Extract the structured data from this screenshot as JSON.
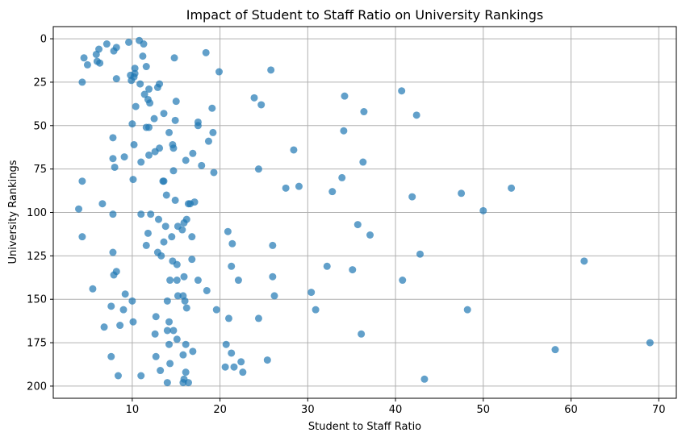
{
  "chart_data": {
    "type": "scatter",
    "title": "Impact of Student to Staff Ratio on University Rankings",
    "xlabel": "Student to Staff Ratio",
    "ylabel": "University Rankings",
    "xlim": [
      1,
      72
    ],
    "ylim": [
      207,
      -7
    ],
    "y_inverted": true,
    "grid": true,
    "x_ticks": [
      10,
      20,
      30,
      40,
      50,
      60,
      70
    ],
    "y_ticks": [
      0,
      25,
      50,
      75,
      100,
      125,
      150,
      175,
      200
    ],
    "color": "#1f77b4",
    "series": [
      {
        "points": [
          [
            10.8,
            1
          ],
          [
            9.6,
            2
          ],
          [
            7.1,
            3
          ],
          [
            11.3,
            3
          ],
          [
            8.2,
            5
          ],
          [
            6.2,
            6
          ],
          [
            7.9,
            7
          ],
          [
            18.4,
            8
          ],
          [
            5.9,
            9
          ],
          [
            11.2,
            10
          ],
          [
            4.5,
            11
          ],
          [
            14.8,
            11
          ],
          [
            6,
            13
          ],
          [
            6.3,
            14
          ],
          [
            4.9,
            15
          ],
          [
            11.6,
            16
          ],
          [
            10.3,
            17
          ],
          [
            25.8,
            18
          ],
          [
            19.9,
            19
          ],
          [
            10.3,
            20
          ],
          [
            9.8,
            21
          ],
          [
            10.2,
            22
          ],
          [
            8.2,
            23
          ],
          [
            9.9,
            24
          ],
          [
            4.3,
            25
          ],
          [
            10.9,
            26
          ],
          [
            13.1,
            26
          ],
          [
            12.9,
            28
          ],
          [
            11.9,
            29
          ],
          [
            40.7,
            30
          ],
          [
            11.4,
            32
          ],
          [
            34.2,
            33
          ],
          [
            23.9,
            34
          ],
          [
            11.8,
            35
          ],
          [
            12,
            37
          ],
          [
            15,
            36
          ],
          [
            24.7,
            38
          ],
          [
            10.4,
            39
          ],
          [
            19.1,
            40
          ],
          [
            36.4,
            42
          ],
          [
            13.6,
            43
          ],
          [
            42.4,
            44
          ],
          [
            12.5,
            46
          ],
          [
            14.9,
            47
          ],
          [
            17.5,
            48
          ],
          [
            17.5,
            50
          ],
          [
            10,
            49
          ],
          [
            11.6,
            51
          ],
          [
            11.9,
            51
          ],
          [
            34.1,
            53
          ],
          [
            14.2,
            54
          ],
          [
            19.2,
            54
          ],
          [
            7.8,
            57
          ],
          [
            18.7,
            59
          ],
          [
            14.6,
            61
          ],
          [
            10.2,
            61
          ],
          [
            13.1,
            63
          ],
          [
            14.7,
            63
          ],
          [
            28.4,
            64
          ],
          [
            12.6,
            65
          ],
          [
            16.9,
            66
          ],
          [
            11.9,
            67
          ],
          [
            9.1,
            68
          ],
          [
            7.8,
            69
          ],
          [
            16.1,
            70
          ],
          [
            11,
            71
          ],
          [
            36.3,
            71
          ],
          [
            17.9,
            73
          ],
          [
            8,
            74
          ],
          [
            24.4,
            75
          ],
          [
            14.7,
            76
          ],
          [
            19.3,
            77
          ],
          [
            33.9,
            80
          ],
          [
            10.1,
            81
          ],
          [
            4.3,
            82
          ],
          [
            13.5,
            82
          ],
          [
            13.6,
            82
          ],
          [
            27.5,
            86
          ],
          [
            29,
            85
          ],
          [
            53.2,
            86
          ],
          [
            32.8,
            88
          ],
          [
            47.5,
            89
          ],
          [
            13.9,
            90
          ],
          [
            41.9,
            91
          ],
          [
            14.9,
            93
          ],
          [
            16.4,
            95
          ],
          [
            17.1,
            94
          ],
          [
            16.6,
            95
          ],
          [
            6.6,
            95
          ],
          [
            3.9,
            98
          ],
          [
            50,
            99
          ],
          [
            7.8,
            101
          ],
          [
            11,
            101
          ],
          [
            12.1,
            101
          ],
          [
            13,
            104
          ],
          [
            16.2,
            104
          ],
          [
            15.9,
            106
          ],
          [
            35.7,
            107
          ],
          [
            15.2,
            108
          ],
          [
            13.8,
            108
          ],
          [
            15.7,
            110
          ],
          [
            20.9,
            111
          ],
          [
            11.8,
            112
          ],
          [
            37.1,
            113
          ],
          [
            4.3,
            114
          ],
          [
            16.8,
            114
          ],
          [
            14.5,
            114
          ],
          [
            13.6,
            117
          ],
          [
            21.4,
            118
          ],
          [
            11.6,
            119
          ],
          [
            26,
            119
          ],
          [
            7.8,
            123
          ],
          [
            12.9,
            123
          ],
          [
            13.3,
            125
          ],
          [
            42.8,
            124
          ],
          [
            14.6,
            128
          ],
          [
            16.8,
            127
          ],
          [
            61.5,
            128
          ],
          [
            15.1,
            130
          ],
          [
            21.3,
            131
          ],
          [
            32.2,
            131
          ],
          [
            35.1,
            133
          ],
          [
            8.2,
            134
          ],
          [
            7.9,
            136
          ],
          [
            26,
            137
          ],
          [
            15.9,
            137
          ],
          [
            14.3,
            139
          ],
          [
            15.1,
            139
          ],
          [
            17.5,
            139
          ],
          [
            22.1,
            139
          ],
          [
            40.8,
            139
          ],
          [
            5.5,
            144
          ],
          [
            18.5,
            145
          ],
          [
            30.4,
            146
          ],
          [
            9.2,
            147
          ],
          [
            26.2,
            148
          ],
          [
            15.2,
            148
          ],
          [
            15.8,
            148
          ],
          [
            16,
            151
          ],
          [
            10,
            151
          ],
          [
            14,
            151
          ],
          [
            7.6,
            154
          ],
          [
            9,
            156
          ],
          [
            19.6,
            156
          ],
          [
            30.9,
            156
          ],
          [
            48.2,
            156
          ],
          [
            16.2,
            155
          ],
          [
            12.7,
            160
          ],
          [
            24.4,
            161
          ],
          [
            21,
            161
          ],
          [
            14.2,
            163
          ],
          [
            10.1,
            163
          ],
          [
            8.6,
            165
          ],
          [
            6.8,
            166
          ],
          [
            14,
            168
          ],
          [
            14.7,
            168
          ],
          [
            36.1,
            170
          ],
          [
            12.6,
            170
          ],
          [
            15.1,
            173
          ],
          [
            16.1,
            176
          ],
          [
            14.2,
            176
          ],
          [
            69,
            175
          ],
          [
            20.7,
            176
          ],
          [
            58.2,
            179
          ],
          [
            16.9,
            180
          ],
          [
            21.3,
            181
          ],
          [
            15.8,
            182
          ],
          [
            12.7,
            183
          ],
          [
            7.6,
            183
          ],
          [
            25.4,
            185
          ],
          [
            22.4,
            186
          ],
          [
            14.3,
            187
          ],
          [
            20.6,
            189
          ],
          [
            21.6,
            189
          ],
          [
            13.2,
            191
          ],
          [
            16.1,
            192
          ],
          [
            22.6,
            192
          ],
          [
            8.4,
            194
          ],
          [
            11,
            194
          ],
          [
            15.9,
            196
          ],
          [
            43.3,
            196
          ],
          [
            15.8,
            198
          ],
          [
            16.4,
            198
          ],
          [
            14,
            198
          ]
        ]
      }
    ]
  }
}
